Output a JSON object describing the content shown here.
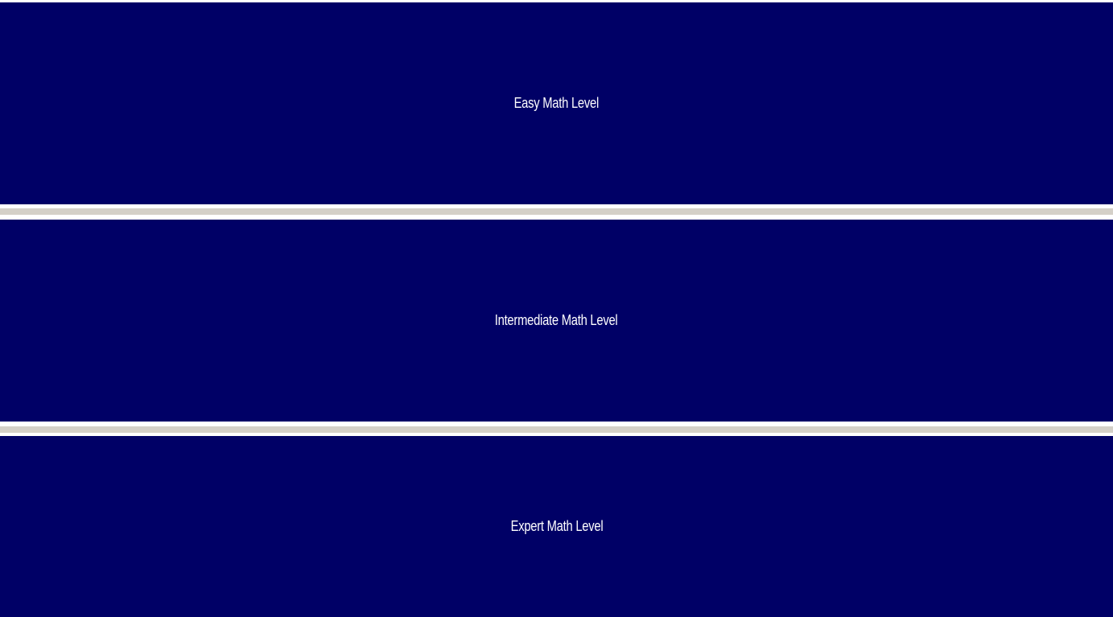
{
  "levels": {
    "easy_label": "Easy Math Level",
    "intermediate_label": "Intermediate Math Level",
    "expert_label": "Expert Math Level"
  },
  "colors": {
    "button_background": "#000066",
    "button_text": "#ffffff",
    "separator": "#d4d0c8"
  }
}
